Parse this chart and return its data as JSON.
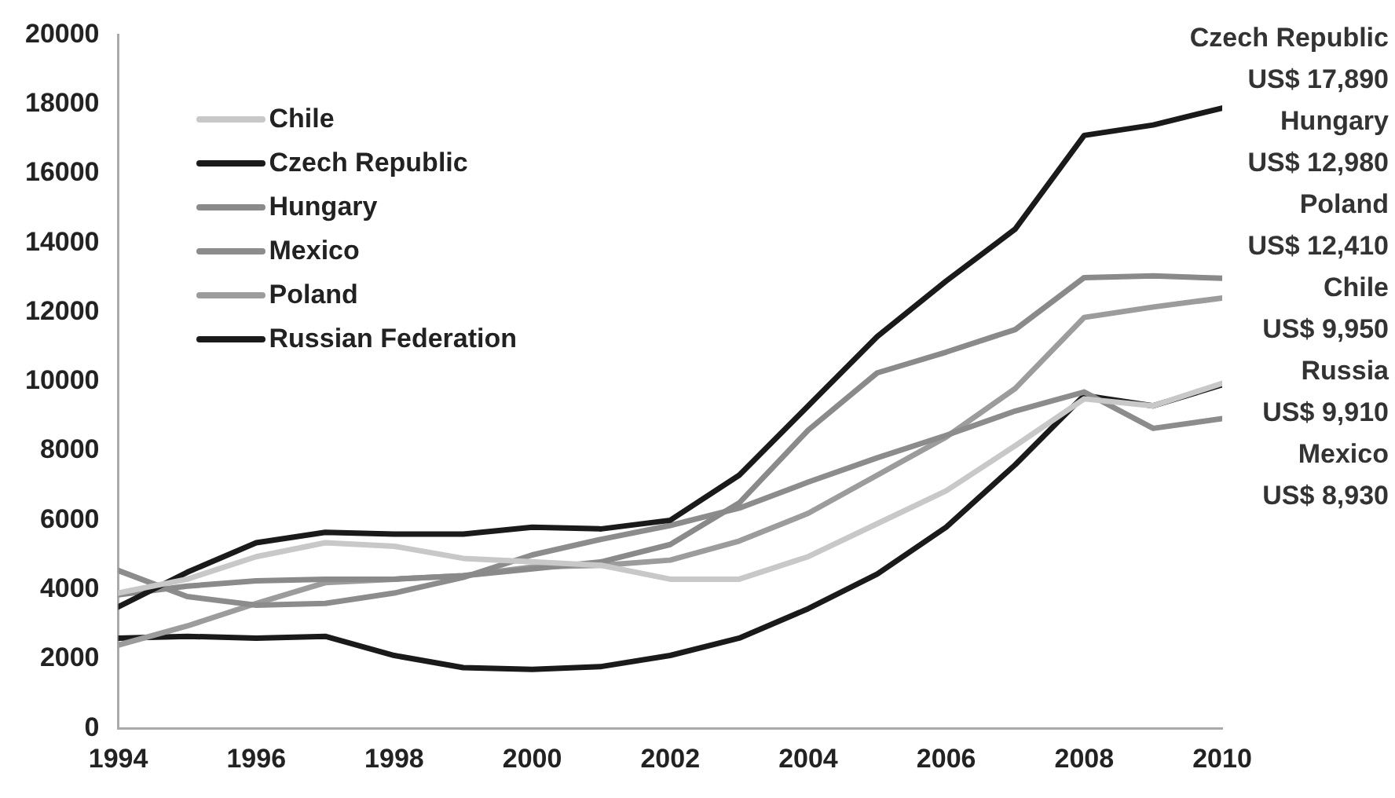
{
  "chart_data": {
    "type": "line",
    "x": [
      1994,
      1995,
      1996,
      1997,
      1998,
      1999,
      2000,
      2001,
      2002,
      2003,
      2004,
      2005,
      2006,
      2007,
      2008,
      2009,
      2010
    ],
    "xlim": [
      1994,
      2010
    ],
    "xticks": [
      1994,
      1996,
      1998,
      2000,
      2002,
      2004,
      2006,
      2008,
      2010
    ],
    "ylim": [
      0,
      20000
    ],
    "yticks": [
      0,
      2000,
      4000,
      6000,
      8000,
      10000,
      12000,
      14000,
      16000,
      18000,
      20000
    ],
    "grid": false,
    "legend": "top left",
    "marker": "none",
    "line_style": "solid",
    "series": [
      {
        "name": "Chile",
        "color": "#c8c8c8",
        "values": [
          3900,
          4300,
          4950,
          5350,
          5250,
          4900,
          4800,
          4700,
          4300,
          4300,
          4950,
          5900,
          6850,
          8150,
          9500,
          9300,
          9950
        ]
      },
      {
        "name": "Czech Republic",
        "color": "#1a1a1a",
        "values": [
          3500,
          4500,
          5350,
          5650,
          5600,
          5600,
          5800,
          5750,
          6000,
          7300,
          9300,
          11300,
          12900,
          14400,
          17100,
          17400,
          17890
        ]
      },
      {
        "name": "Hungary",
        "color": "#8a8a8a",
        "values": [
          3850,
          4100,
          4250,
          4300,
          4300,
          4400,
          4600,
          4800,
          5300,
          6500,
          8600,
          10250,
          10850,
          11500,
          13000,
          13050,
          12980
        ]
      },
      {
        "name": "Mexico",
        "color": "#8c8c8c",
        "values": [
          4550,
          3800,
          3550,
          3600,
          3900,
          4350,
          5000,
          5450,
          5850,
          6350,
          7100,
          7800,
          8450,
          9150,
          9700,
          8650,
          8930
        ]
      },
      {
        "name": "Poland",
        "color": "#9c9c9c",
        "values": [
          2400,
          2950,
          3600,
          4200,
          4300,
          4400,
          4650,
          4700,
          4850,
          5400,
          6200,
          7300,
          8400,
          9800,
          11850,
          12150,
          12410
        ]
      },
      {
        "name": "Russian Federation",
        "color": "#1a1a1a",
        "values": [
          2600,
          2650,
          2600,
          2650,
          2100,
          1750,
          1700,
          1780,
          2100,
          2600,
          3450,
          4450,
          5800,
          7600,
          9600,
          9300,
          9910
        ]
      }
    ],
    "annotations": [
      "Czech Republic",
      "US$ 17,890",
      "Hungary",
      "US$ 12,980",
      "Poland",
      "US$ 12,410",
      "Chile",
      "US$ 9,950",
      "Russia",
      "US$ 9,910",
      "Mexico",
      "US$ 8,930"
    ]
  }
}
